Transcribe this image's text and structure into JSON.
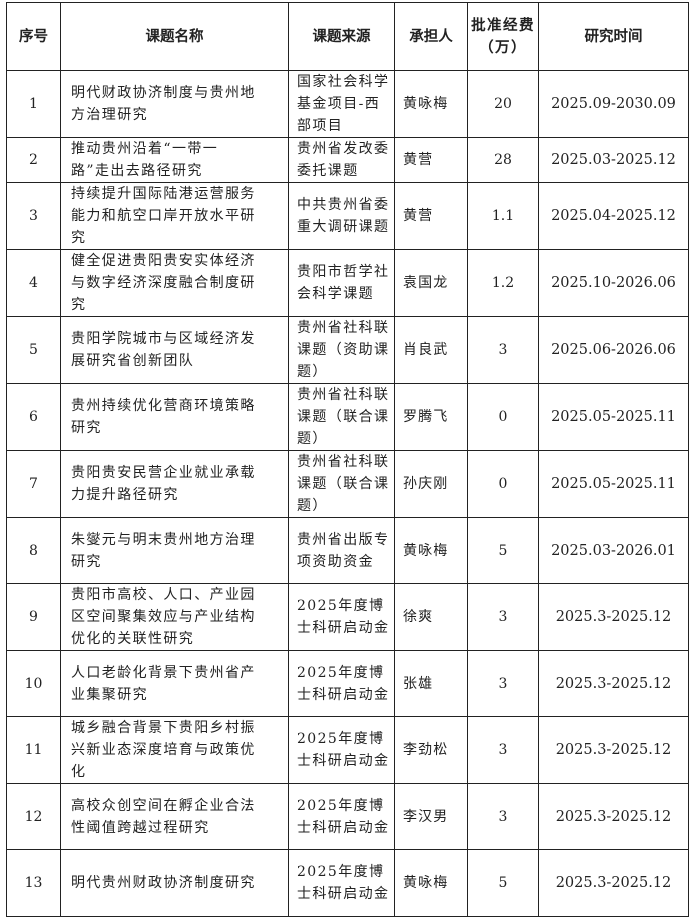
{
  "headers": {
    "index": "序号",
    "name": "课题名称",
    "source": "课题来源",
    "holder": "承担人",
    "funding": "批准经费（万）",
    "period": "研究时间"
  },
  "rows": [
    {
      "index": "1",
      "name": "明代财政协济制度与贵州地方治理研究",
      "source": "国家社会科学基金项目-西部项目",
      "holder": "黄咏梅",
      "funding": "20",
      "period": "2025.09-2030.09"
    },
    {
      "index": "2",
      "name": "推动贵州沿着“一带一路”走出去路径研究",
      "source": "贵州省发改委委托课题",
      "holder": "黄营",
      "funding": "28",
      "period": "2025.03-2025.12"
    },
    {
      "index": "3",
      "name": "持续提升国际陆港运营服务能力和航空口岸开放水平研究",
      "source": "中共贵州省委重大调研课题",
      "holder": "黄营",
      "funding": "1.1",
      "period": "2025.04-2025.12"
    },
    {
      "index": "4",
      "name": "健全促进贵阳贵安实体经济与数字经济深度融合制度研究",
      "source": "贵阳市哲学社会科学课题",
      "holder": "袁国龙",
      "funding": "1.2",
      "period": "2025.10-2026.06"
    },
    {
      "index": "5",
      "name": "贵阳学院城市与区域经济发展研究省创新团队",
      "source": "贵州省社科联课题（资助课题）",
      "holder": "肖良武",
      "funding": "3",
      "period": "2025.06-2026.06"
    },
    {
      "index": "6",
      "name": "贵州持续优化营商环境策略研究",
      "source": "贵州省社科联课题（联合课题）",
      "holder": "罗腾飞",
      "funding": "0",
      "period": "2025.05-2025.11"
    },
    {
      "index": "7",
      "name": "贵阳贵安民营企业就业承载力提升路径研究",
      "source": "贵州省社科联课题（联合课题）",
      "holder": "孙庆刚",
      "funding": "0",
      "period": "2025.05-2025.11"
    },
    {
      "index": "8",
      "name": "朱燮元与明末贵州地方治理研究",
      "source": "贵州省出版专项资助资金",
      "holder": "黄咏梅",
      "funding": "5",
      "period": "2025.03-2026.01"
    },
    {
      "index": "9",
      "name": "贵阳市高校、人口、产业园区空间聚集效应与产业结构优化的关联性研究",
      "source": "2025年度博士科研启动金",
      "holder": "徐爽",
      "funding": "3",
      "period": "2025.3-2025.12"
    },
    {
      "index": "10",
      "name": "人口老龄化背景下贵州省产业集聚研究",
      "source": "2025年度博士科研启动金",
      "holder": "张雄",
      "funding": "3",
      "period": "2025.3-2025.12"
    },
    {
      "index": "11",
      "name": "城乡融合背景下贵阳乡村振兴新业态深度培育与政策优化",
      "source": "2025年度博士科研启动金",
      "holder": "李劲松",
      "funding": "3",
      "period": "2025.3-2025.12"
    },
    {
      "index": "12",
      "name": "高校众创空间在孵企业合法性阈值跨越过程研究",
      "source": "2025年度博士科研启动金",
      "holder": "李汉男",
      "funding": "3",
      "period": "2025.3-2025.12"
    },
    {
      "index": "13",
      "name": "明代贵州财政协济制度研究",
      "source": "2025年度博士科研启动金",
      "holder": "黄咏梅",
      "funding": "5",
      "period": "2025.3-2025.12"
    }
  ]
}
